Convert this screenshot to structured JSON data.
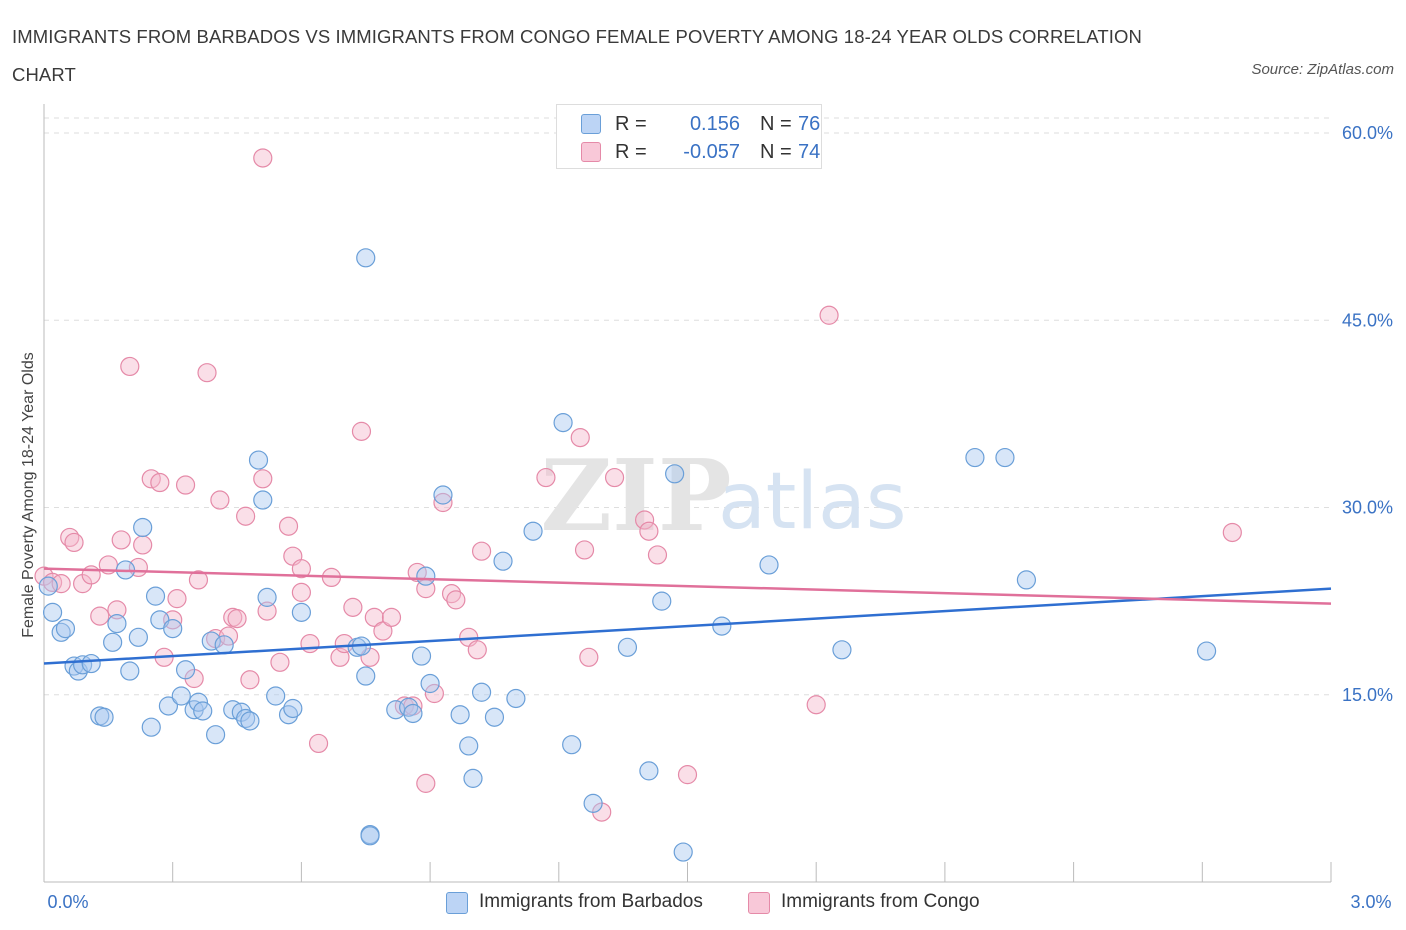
{
  "header": {
    "title": "IMMIGRANTS FROM BARBADOS VS IMMIGRANTS FROM CONGO FEMALE POVERTY AMONG 18-24 YEAR OLDS CORRELATION CHART",
    "source": "Source: ZipAtlas.com"
  },
  "legend": {
    "series1": {
      "r_key": "R =",
      "r_value": "0.156",
      "n_key": "N =",
      "n_value": "76"
    },
    "series2": {
      "r_key": "R =",
      "r_value": "-0.057",
      "n_key": "N =",
      "n_value": "74"
    }
  },
  "watermark": {
    "zip": "ZIP",
    "atlas": "atlas"
  },
  "colors": {
    "blue_fill": "#a8c8f0",
    "blue_stroke": "#6a9fd8",
    "blue_line": "#2f6fd1",
    "pink_fill": "#f5b8cc",
    "pink_stroke": "#e58aa8",
    "pink_line": "#e0709a",
    "value_text": "#3a72c4",
    "grid": "#dedede"
  },
  "chart_data": {
    "type": "scatter",
    "title": "IMMIGRANTS FROM BARBADOS VS IMMIGRANTS FROM CONGO FEMALE POVERTY AMONG 18-24 YEAR OLDS CORRELATION CHART",
    "xlabel": "",
    "ylabel": "Female Poverty Among 18-24 Year Olds",
    "xlim": [
      0,
      3.0
    ],
    "ylim": [
      0,
      60
    ],
    "x_tick_labels": [
      "0.0%",
      "3.0%"
    ],
    "y_tick_labels": [
      "15.0%",
      "30.0%",
      "45.0%",
      "60.0%"
    ],
    "y_ticks": [
      15,
      30,
      45,
      60
    ],
    "legend_position": "bottom-center",
    "series": [
      {
        "name": "Immigrants from Barbados",
        "color": "#a8c8f0",
        "trend": {
          "x": [
            0,
            3.0
          ],
          "y": [
            17.5,
            23.5
          ]
        },
        "points": [
          [
            0.02,
            21.6
          ],
          [
            0.04,
            20.0
          ],
          [
            0.05,
            20.3
          ],
          [
            0.07,
            17.3
          ],
          [
            0.08,
            16.9
          ],
          [
            0.09,
            17.4
          ],
          [
            0.11,
            17.5
          ],
          [
            0.13,
            13.3
          ],
          [
            0.14,
            13.2
          ],
          [
            0.16,
            19.2
          ],
          [
            0.17,
            20.7
          ],
          [
            0.19,
            25.0
          ],
          [
            0.2,
            16.9
          ],
          [
            0.22,
            19.6
          ],
          [
            0.23,
            28.4
          ],
          [
            0.25,
            12.4
          ],
          [
            0.26,
            22.9
          ],
          [
            0.27,
            21.0
          ],
          [
            0.29,
            14.1
          ],
          [
            0.3,
            20.3
          ],
          [
            0.32,
            14.9
          ],
          [
            0.33,
            17.0
          ],
          [
            0.35,
            13.8
          ],
          [
            0.36,
            14.4
          ],
          [
            0.37,
            13.7
          ],
          [
            0.39,
            19.3
          ],
          [
            0.4,
            11.8
          ],
          [
            0.42,
            19.0
          ],
          [
            0.44,
            13.8
          ],
          [
            0.46,
            13.6
          ],
          [
            0.47,
            13.1
          ],
          [
            0.48,
            12.9
          ],
          [
            0.5,
            33.8
          ],
          [
            0.51,
            30.6
          ],
          [
            0.52,
            22.8
          ],
          [
            0.54,
            14.9
          ],
          [
            0.57,
            13.4
          ],
          [
            0.58,
            13.9
          ],
          [
            0.6,
            21.6
          ],
          [
            0.73,
            18.8
          ],
          [
            0.74,
            18.9
          ],
          [
            0.75,
            50.0
          ],
          [
            0.75,
            16.5
          ],
          [
            0.76,
            3.8
          ],
          [
            0.76,
            3.7
          ],
          [
            0.82,
            13.8
          ],
          [
            0.85,
            14.0
          ],
          [
            0.86,
            13.5
          ],
          [
            0.88,
            18.1
          ],
          [
            0.9,
            15.9
          ],
          [
            0.89,
            24.5
          ],
          [
            0.93,
            31.0
          ],
          [
            0.97,
            13.4
          ],
          [
            0.99,
            10.9
          ],
          [
            1.0,
            8.3
          ],
          [
            1.02,
            15.2
          ],
          [
            1.05,
            13.2
          ],
          [
            1.07,
            25.7
          ],
          [
            1.1,
            14.7
          ],
          [
            1.14,
            28.1
          ],
          [
            1.21,
            36.8
          ],
          [
            1.23,
            11.0
          ],
          [
            1.28,
            6.3
          ],
          [
            1.36,
            18.8
          ],
          [
            1.41,
            8.9
          ],
          [
            1.44,
            22.5
          ],
          [
            1.47,
            32.7
          ],
          [
            1.49,
            2.4
          ],
          [
            1.58,
            20.5
          ],
          [
            1.69,
            25.4
          ],
          [
            1.86,
            18.6
          ],
          [
            2.17,
            34.0
          ],
          [
            2.24,
            34.0
          ],
          [
            2.29,
            24.2
          ],
          [
            2.71,
            18.5
          ],
          [
            0.01,
            23.7
          ]
        ]
      },
      {
        "name": "Immigrants from Congo",
        "color": "#f5b8cc",
        "trend": {
          "x": [
            0,
            3.0
          ],
          "y": [
            25.1,
            22.3
          ]
        },
        "points": [
          [
            0.0,
            24.5
          ],
          [
            0.02,
            24.0
          ],
          [
            0.04,
            23.9
          ],
          [
            0.06,
            27.6
          ],
          [
            0.07,
            27.2
          ],
          [
            0.09,
            23.9
          ],
          [
            0.11,
            24.6
          ],
          [
            0.13,
            21.3
          ],
          [
            0.15,
            25.4
          ],
          [
            0.17,
            21.8
          ],
          [
            0.18,
            27.4
          ],
          [
            0.2,
            41.3
          ],
          [
            0.22,
            25.2
          ],
          [
            0.23,
            27.0
          ],
          [
            0.25,
            32.3
          ],
          [
            0.27,
            32.0
          ],
          [
            0.28,
            18.0
          ],
          [
            0.3,
            21.0
          ],
          [
            0.31,
            22.7
          ],
          [
            0.33,
            31.8
          ],
          [
            0.35,
            16.3
          ],
          [
            0.36,
            24.2
          ],
          [
            0.38,
            40.8
          ],
          [
            0.4,
            19.5
          ],
          [
            0.41,
            30.6
          ],
          [
            0.43,
            19.7
          ],
          [
            0.44,
            21.2
          ],
          [
            0.45,
            21.1
          ],
          [
            0.47,
            29.3
          ],
          [
            0.48,
            16.2
          ],
          [
            0.51,
            32.3
          ],
          [
            0.52,
            21.7
          ],
          [
            0.55,
            17.6
          ],
          [
            0.57,
            28.5
          ],
          [
            0.58,
            26.1
          ],
          [
            0.6,
            25.1
          ],
          [
            0.62,
            19.1
          ],
          [
            0.64,
            11.1
          ],
          [
            0.67,
            24.4
          ],
          [
            0.69,
            18.0
          ],
          [
            0.7,
            19.1
          ],
          [
            0.72,
            22.0
          ],
          [
            0.74,
            36.1
          ],
          [
            0.76,
            18.0
          ],
          [
            0.77,
            21.2
          ],
          [
            0.79,
            20.1
          ],
          [
            0.81,
            21.2
          ],
          [
            0.84,
            14.1
          ],
          [
            0.86,
            14.1
          ],
          [
            0.87,
            24.8
          ],
          [
            0.89,
            23.5
          ],
          [
            0.89,
            7.9
          ],
          [
            0.91,
            15.1
          ],
          [
            0.93,
            30.4
          ],
          [
            0.95,
            23.1
          ],
          [
            0.96,
            22.6
          ],
          [
            0.99,
            19.6
          ],
          [
            1.01,
            18.6
          ],
          [
            1.02,
            26.5
          ],
          [
            1.17,
            32.4
          ],
          [
            1.25,
            35.6
          ],
          [
            1.26,
            26.6
          ],
          [
            1.27,
            18.0
          ],
          [
            1.3,
            5.6
          ],
          [
            1.33,
            32.4
          ],
          [
            1.4,
            29.0
          ],
          [
            1.41,
            28.1
          ],
          [
            1.43,
            26.2
          ],
          [
            1.5,
            8.6
          ],
          [
            1.8,
            14.2
          ],
          [
            1.83,
            45.4
          ],
          [
            2.77,
            28.0
          ],
          [
            0.51,
            58.0
          ],
          [
            0.6,
            23.2
          ]
        ]
      }
    ]
  }
}
